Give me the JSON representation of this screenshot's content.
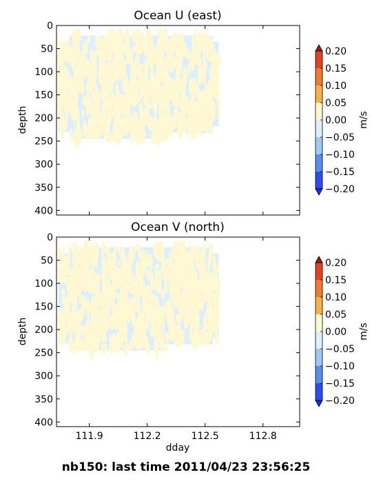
{
  "figure": {
    "footer": "nb150: last time 2011/04/23 23:56:25"
  },
  "colorbar": {
    "ticks": [
      "0.20",
      "0.15",
      "0.10",
      "0.05",
      "0.00",
      "−0.05",
      "−0.10",
      "−0.15",
      "−0.20"
    ],
    "unit": "m/s",
    "levels": [
      0.2,
      0.15,
      0.1,
      0.05,
      0.0,
      -0.05,
      -0.1,
      -0.15,
      -0.2
    ],
    "colors": [
      "#e2431f",
      "#f07a2d",
      "#f8b243",
      "#fff8d2",
      "#dcefff",
      "#9ec7f5",
      "#5a8df0",
      "#2a4cf2"
    ],
    "extend_colors": {
      "top": "#b3120f",
      "bottom": "#1f2fd8"
    }
  },
  "chart_data": [
    {
      "type": "heatmap",
      "title": "Ocean U (east)",
      "xlabel": "",
      "ylabel": "depth",
      "xlim": [
        111.73,
        112.99
      ],
      "ylim": [
        410,
        0
      ],
      "y_ticks": [
        "0",
        "50",
        "100",
        "150",
        "200",
        "250",
        "300",
        "350",
        "400"
      ],
      "x_ticks": [],
      "x_tick_values": [
        111.9,
        112.2,
        112.5,
        112.8
      ],
      "coverage": [
        {
          "x_start": 111.74,
          "x_end": 111.8,
          "depth_top": 35,
          "depth_bottom": 230
        },
        {
          "x_start": 111.8,
          "x_end": 112.29,
          "depth_top": 22,
          "depth_bottom": 245
        },
        {
          "x_start": 112.29,
          "x_end": 112.54,
          "depth_top": 22,
          "depth_bottom": 232
        },
        {
          "x_start": 112.54,
          "x_end": 112.57,
          "depth_top": 35,
          "depth_bottom": 218
        }
      ],
      "values_range": [
        -0.05,
        0.05
      ],
      "value_classes": [
        "0.00 to 0.05",
        "-0.05 to 0.00"
      ]
    },
    {
      "type": "heatmap",
      "title": "Ocean V (north)",
      "xlabel": "dday",
      "ylabel": "depth",
      "xlim": [
        111.73,
        112.99
      ],
      "ylim": [
        410,
        0
      ],
      "y_ticks": [
        "0",
        "50",
        "100",
        "150",
        "200",
        "250",
        "300",
        "350",
        "400"
      ],
      "x_ticks": [
        "111.9",
        "112.2",
        "112.5",
        "112.8"
      ],
      "x_tick_values": [
        111.9,
        112.2,
        112.5,
        112.8
      ],
      "coverage": [
        {
          "x_start": 111.74,
          "x_end": 111.8,
          "depth_top": 35,
          "depth_bottom": 230
        },
        {
          "x_start": 111.8,
          "x_end": 112.29,
          "depth_top": 22,
          "depth_bottom": 245
        },
        {
          "x_start": 112.29,
          "x_end": 112.54,
          "depth_top": 22,
          "depth_bottom": 232
        },
        {
          "x_start": 112.54,
          "x_end": 112.57,
          "depth_top": 35,
          "depth_bottom": 218
        }
      ],
      "values_range": [
        -0.05,
        0.05
      ],
      "value_classes": [
        "0.00 to 0.05",
        "-0.05 to 0.00"
      ]
    }
  ]
}
